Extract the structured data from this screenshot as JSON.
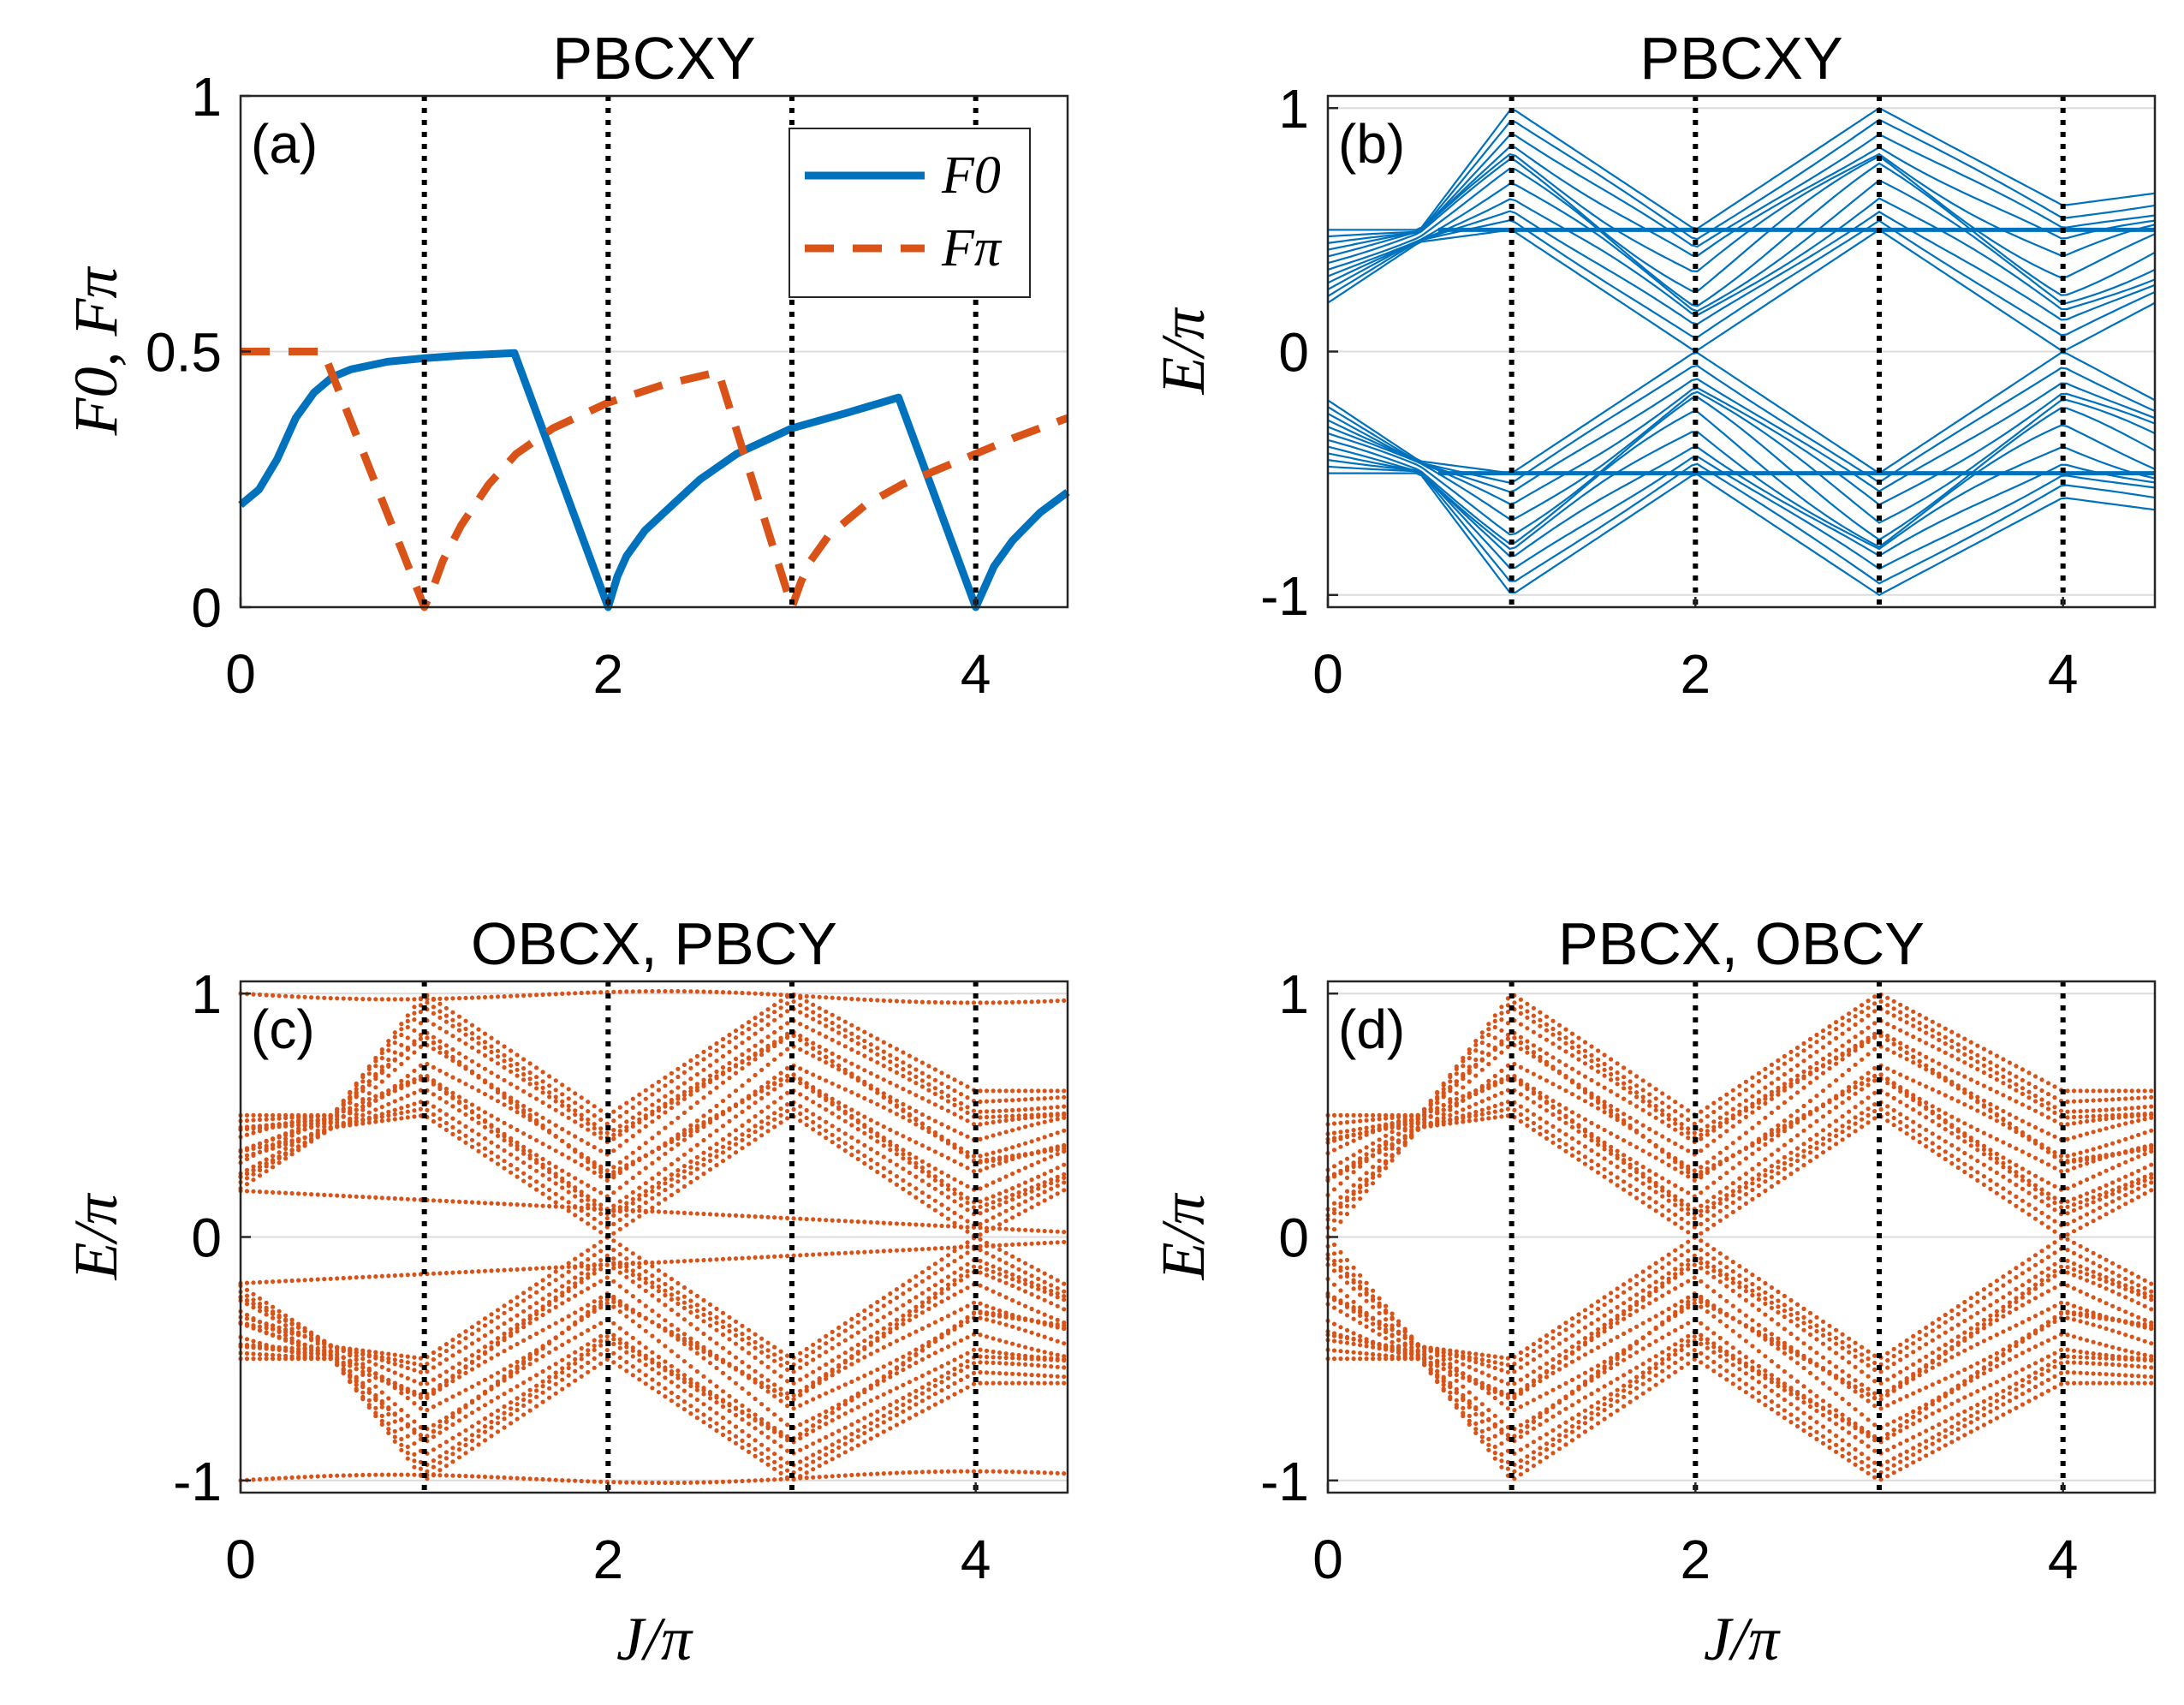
{
  "figure": {
    "colors": {
      "blue": "#0072BD",
      "orange": "#D95319",
      "grid": "#dcdcdc",
      "vline": "#000000"
    }
  },
  "chart_data": [
    {
      "panel": "a",
      "type": "line",
      "title": "PBCXY",
      "panel_label": "(a)",
      "xlabel": "",
      "ylabel": "F0, Fπ",
      "xlim": [
        0,
        4.5
      ],
      "ylim": [
        0,
        1
      ],
      "xticks": [
        0,
        2,
        4
      ],
      "yticks": [
        0,
        0.5,
        1
      ],
      "ytick_labels": [
        "0",
        "0.5",
        "1"
      ],
      "grid": "y",
      "vlines": [
        1,
        2,
        3,
        4
      ],
      "legend": {
        "location": "top-right",
        "entries": [
          "F0",
          "Fπ"
        ]
      },
      "series": [
        {
          "name": "F0",
          "style": "solid",
          "x": [
            0,
            0.1,
            0.2,
            0.3,
            0.4,
            0.5,
            0.6,
            0.8,
            1.0,
            1.2,
            1.49,
            2.0,
            2.05,
            2.1,
            2.2,
            2.35,
            2.5,
            2.7,
            3.0,
            3.3,
            3.58,
            4.0,
            4.05,
            4.1,
            4.2,
            4.35,
            4.5
          ],
          "values": [
            0.2,
            0.23,
            0.29,
            0.37,
            0.42,
            0.45,
            0.465,
            0.48,
            0.487,
            0.492,
            0.497,
            0,
            0.06,
            0.1,
            0.15,
            0.2,
            0.25,
            0.3,
            0.35,
            0.38,
            0.41,
            0,
            0.04,
            0.08,
            0.13,
            0.185,
            0.225
          ]
        },
        {
          "name": "Fπ",
          "style": "dashed",
          "x": [
            0,
            0.45,
            1.0,
            1.05,
            1.1,
            1.2,
            1.35,
            1.5,
            1.7,
            2.0,
            2.3,
            2.6,
            3.0,
            3.05,
            3.1,
            3.2,
            3.4,
            3.6,
            3.8,
            4.0,
            4.2,
            4.5
          ],
          "values": [
            0.5,
            0.5,
            0,
            0.04,
            0.09,
            0.16,
            0.24,
            0.3,
            0.35,
            0.4,
            0.435,
            0.46,
            0,
            0.05,
            0.09,
            0.14,
            0.2,
            0.24,
            0.27,
            0.3,
            0.33,
            0.37
          ]
        }
      ]
    },
    {
      "panel": "b",
      "type": "line",
      "title": "PBCXY",
      "panel_label": "(b)",
      "xlabel": "",
      "ylabel": "E/π",
      "xlim": [
        0,
        4.5
      ],
      "ylim": [
        -1.05,
        1.05
      ],
      "xticks": [
        0,
        2,
        4
      ],
      "yticks": [
        -1,
        0,
        1
      ],
      "ytick_labels": [
        "-1",
        "0",
        "1"
      ],
      "grid": "y",
      "vlines": [
        1,
        2,
        3,
        4
      ],
      "band_edges": {
        "x": [
          0,
          0.5,
          1.0,
          2.0,
          3.0,
          4.0,
          4.5
        ],
        "upper_max": [
          0.5,
          0.5,
          1.0,
          0.5,
          1.0,
          0.6,
          0.65
        ],
        "lower_min": [
          0.2,
          0.45,
          0.5,
          0.0,
          0.5,
          0.0,
          0.2
        ]
      },
      "n_levels": 12
    },
    {
      "panel": "c",
      "type": "scatter",
      "title": "OBCX, PBCY",
      "panel_label": "(c)",
      "xlabel": "J/π",
      "ylabel": "E/π",
      "xlim": [
        0,
        4.5
      ],
      "ylim": [
        -1.05,
        1.05
      ],
      "xticks": [
        0,
        2,
        4
      ],
      "yticks": [
        -1,
        0,
        1
      ],
      "ytick_labels": [
        "-1",
        "0",
        "1"
      ],
      "grid": "y",
      "vlines": [
        1,
        2,
        3,
        4
      ],
      "band_edges": {
        "x": [
          0,
          0.5,
          1.0,
          2.0,
          3.0,
          4.0,
          4.5
        ],
        "upper_max": [
          0.5,
          0.5,
          1.0,
          0.5,
          1.0,
          0.6,
          0.6
        ],
        "lower_min": [
          0.2,
          0.45,
          0.5,
          0.0,
          0.5,
          0.0,
          0.2
        ]
      },
      "edge_states": true
    },
    {
      "panel": "d",
      "type": "scatter",
      "title": "PBCX, OBCY",
      "panel_label": "(d)",
      "xlabel": "J/π",
      "ylabel": "E/π",
      "xlim": [
        0,
        4.5
      ],
      "ylim": [
        -1.05,
        1.05
      ],
      "xticks": [
        0,
        2,
        4
      ],
      "yticks": [
        -1,
        0,
        1
      ],
      "ytick_labels": [
        "-1",
        "0",
        "1"
      ],
      "grid": "y",
      "vlines": [
        1,
        2,
        3,
        4
      ],
      "band_edges": {
        "x": [
          0,
          0.5,
          1.0,
          2.0,
          3.0,
          4.0,
          4.5
        ],
        "upper_max": [
          0.5,
          0.5,
          1.0,
          0.5,
          1.0,
          0.6,
          0.6
        ],
        "lower_min": [
          0.0,
          0.45,
          0.5,
          0.0,
          0.5,
          0.0,
          0.2
        ]
      },
      "edge_states": false
    }
  ]
}
